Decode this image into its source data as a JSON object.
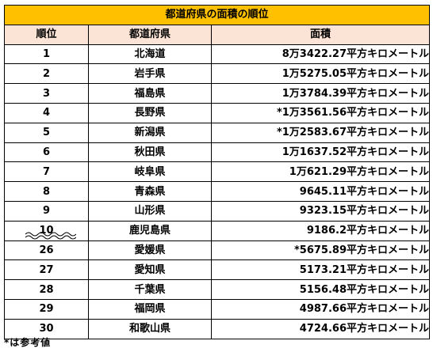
{
  "title": "都道府県の面積の順位",
  "headers": {
    "rank": "順位",
    "prefecture": "都道府県",
    "area": "面積"
  },
  "rows": [
    {
      "rank": "1",
      "prefecture": "北海道",
      "area": "8万3422.27平方キロメートル"
    },
    {
      "rank": "2",
      "prefecture": "岩手県",
      "area": "1万5275.05平方キロメートル"
    },
    {
      "rank": "3",
      "prefecture": "福島県",
      "area": "1万3784.39平方キロメートル"
    },
    {
      "rank": "4",
      "prefecture": "長野県",
      "area": "*1万3561.56平方キロメートル"
    },
    {
      "rank": "5",
      "prefecture": "新潟県",
      "area": "*1万2583.67平方キロメートル"
    },
    {
      "rank": "6",
      "prefecture": "秋田県",
      "area": "1万1637.52平方キロメートル"
    },
    {
      "rank": "7",
      "prefecture": "岐阜県",
      "area": "1万621.29平方キロメートル"
    },
    {
      "rank": "8",
      "prefecture": "青森県",
      "area": "9645.11平方キロメートル"
    },
    {
      "rank": "9",
      "prefecture": "山形県",
      "area": "9323.15平方キロメートル"
    },
    {
      "rank": "10",
      "prefecture": "鹿児島県",
      "area": "9186.2平方キロメートル"
    },
    {
      "rank": "26",
      "prefecture": "愛媛県",
      "area": "*5675.89平方キロメートル"
    },
    {
      "rank": "27",
      "prefecture": "愛知県",
      "area": "5173.21平方キロメートル"
    },
    {
      "rank": "28",
      "prefecture": "千葉県",
      "area": "5156.48平方キロメートル"
    },
    {
      "rank": "29",
      "prefecture": "福岡県",
      "area": "4987.66平方キロメートル"
    },
    {
      "rank": "30",
      "prefecture": "和歌山県",
      "area": "4724.66平方キロメートル"
    }
  ],
  "footnote": "*は参考値",
  "colors": {
    "title_bg": "#ffc000",
    "header_bg": "#fbe4d5",
    "border": "#000000"
  }
}
